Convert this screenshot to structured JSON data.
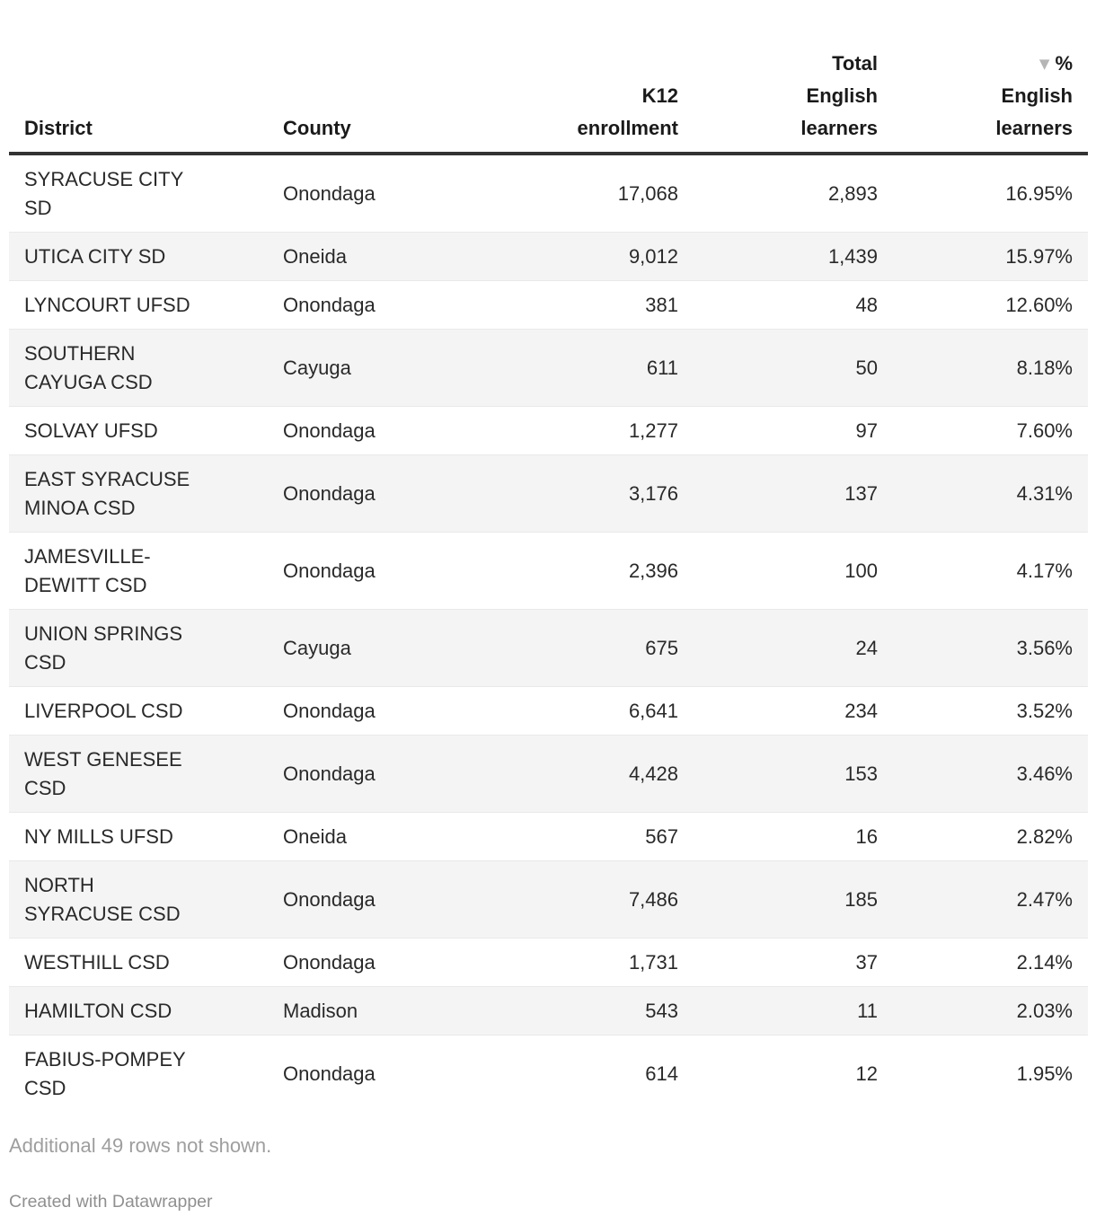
{
  "chart_data": {
    "type": "table",
    "title": "",
    "columns": [
      "District",
      "County",
      "K12 enrollment",
      "Total English learners",
      "% English learners"
    ],
    "sort": {
      "column": "% English learners",
      "direction": "descending"
    },
    "rows": [
      [
        "SYRACUSE CITY SD",
        "Onondaga",
        17068,
        2893,
        "16.95%"
      ],
      [
        "UTICA CITY SD",
        "Oneida",
        9012,
        1439,
        "15.97%"
      ],
      [
        "LYNCOURT UFSD",
        "Onondaga",
        381,
        48,
        "12.60%"
      ],
      [
        "SOUTHERN CAYUGA CSD",
        "Cayuga",
        611,
        50,
        "8.18%"
      ],
      [
        "SOLVAY UFSD",
        "Onondaga",
        1277,
        97,
        "7.60%"
      ],
      [
        "EAST SYRACUSE MINOA CSD",
        "Onondaga",
        3176,
        137,
        "4.31%"
      ],
      [
        "JAMESVILLE-DEWITT CSD",
        "Onondaga",
        2396,
        100,
        "4.17%"
      ],
      [
        "UNION SPRINGS CSD",
        "Cayuga",
        675,
        24,
        "3.56%"
      ],
      [
        "LIVERPOOL CSD",
        "Onondaga",
        6641,
        234,
        "3.52%"
      ],
      [
        "WEST GENESEE CSD",
        "Onondaga",
        4428,
        153,
        "3.46%"
      ],
      [
        "NY MILLS UFSD",
        "Oneida",
        567,
        16,
        "2.82%"
      ],
      [
        "NORTH SYRACUSE CSD",
        "Onondaga",
        7486,
        185,
        "2.47%"
      ],
      [
        "WESTHILL CSD",
        "Onondaga",
        1731,
        37,
        "2.14%"
      ],
      [
        "HAMILTON CSD",
        "Madison",
        543,
        11,
        "2.03%"
      ],
      [
        "FABIUS-POMPEY CSD",
        "Onondaga",
        614,
        12,
        "1.95%"
      ]
    ]
  },
  "ui": {
    "header": {
      "col_district": "District",
      "col_county": "County",
      "col_k12": "K12\nenrollment",
      "col_total": "Total\nEnglish\nlearners",
      "col_pct": "%\nEnglish\nlearners",
      "sort_icon": "▼"
    },
    "rows": [
      {
        "district": "SYRACUSE CITY\nSD",
        "county": "Onondaga",
        "k12": "17,068",
        "total": "2,893",
        "pct": "16.95%"
      },
      {
        "district": "UTICA CITY SD",
        "county": "Oneida",
        "k12": "9,012",
        "total": "1,439",
        "pct": "15.97%"
      },
      {
        "district": "LYNCOURT UFSD",
        "county": "Onondaga",
        "k12": "381",
        "total": "48",
        "pct": "12.60%"
      },
      {
        "district": "SOUTHERN\nCAYUGA CSD",
        "county": "Cayuga",
        "k12": "611",
        "total": "50",
        "pct": "8.18%"
      },
      {
        "district": "SOLVAY UFSD",
        "county": "Onondaga",
        "k12": "1,277",
        "total": "97",
        "pct": "7.60%"
      },
      {
        "district": "EAST SYRACUSE\nMINOA CSD",
        "county": "Onondaga",
        "k12": "3,176",
        "total": "137",
        "pct": "4.31%"
      },
      {
        "district": "JAMESVILLE-\nDEWITT CSD",
        "county": "Onondaga",
        "k12": "2,396",
        "total": "100",
        "pct": "4.17%"
      },
      {
        "district": "UNION SPRINGS\nCSD",
        "county": "Cayuga",
        "k12": "675",
        "total": "24",
        "pct": "3.56%"
      },
      {
        "district": "LIVERPOOL CSD",
        "county": "Onondaga",
        "k12": "6,641",
        "total": "234",
        "pct": "3.52%"
      },
      {
        "district": "WEST GENESEE\nCSD",
        "county": "Onondaga",
        "k12": "4,428",
        "total": "153",
        "pct": "3.46%"
      },
      {
        "district": "NY MILLS UFSD",
        "county": "Oneida",
        "k12": "567",
        "total": "16",
        "pct": "2.82%"
      },
      {
        "district": "NORTH\nSYRACUSE CSD",
        "county": "Onondaga",
        "k12": "7,486",
        "total": "185",
        "pct": "2.47%"
      },
      {
        "district": "WESTHILL CSD",
        "county": "Onondaga",
        "k12": "1,731",
        "total": "37",
        "pct": "2.14%"
      },
      {
        "district": "HAMILTON CSD",
        "county": "Madison",
        "k12": "543",
        "total": "11",
        "pct": "2.03%"
      },
      {
        "district": "FABIUS-POMPEY\nCSD",
        "county": "Onondaga",
        "k12": "614",
        "total": "12",
        "pct": "1.95%"
      }
    ],
    "note": "Additional 49 rows not shown.",
    "credit": "Created with Datawrapper"
  },
  "colors": {
    "header_text": "#1a1a1a",
    "body_text": "#292929",
    "row_stripe": "#f4f4f4",
    "header_border": "#333333",
    "row_border": "#e9e9e9",
    "note_text": "#9e9e9e",
    "credit_text": "#909090",
    "sort_arrow": "#b5b5b5"
  }
}
